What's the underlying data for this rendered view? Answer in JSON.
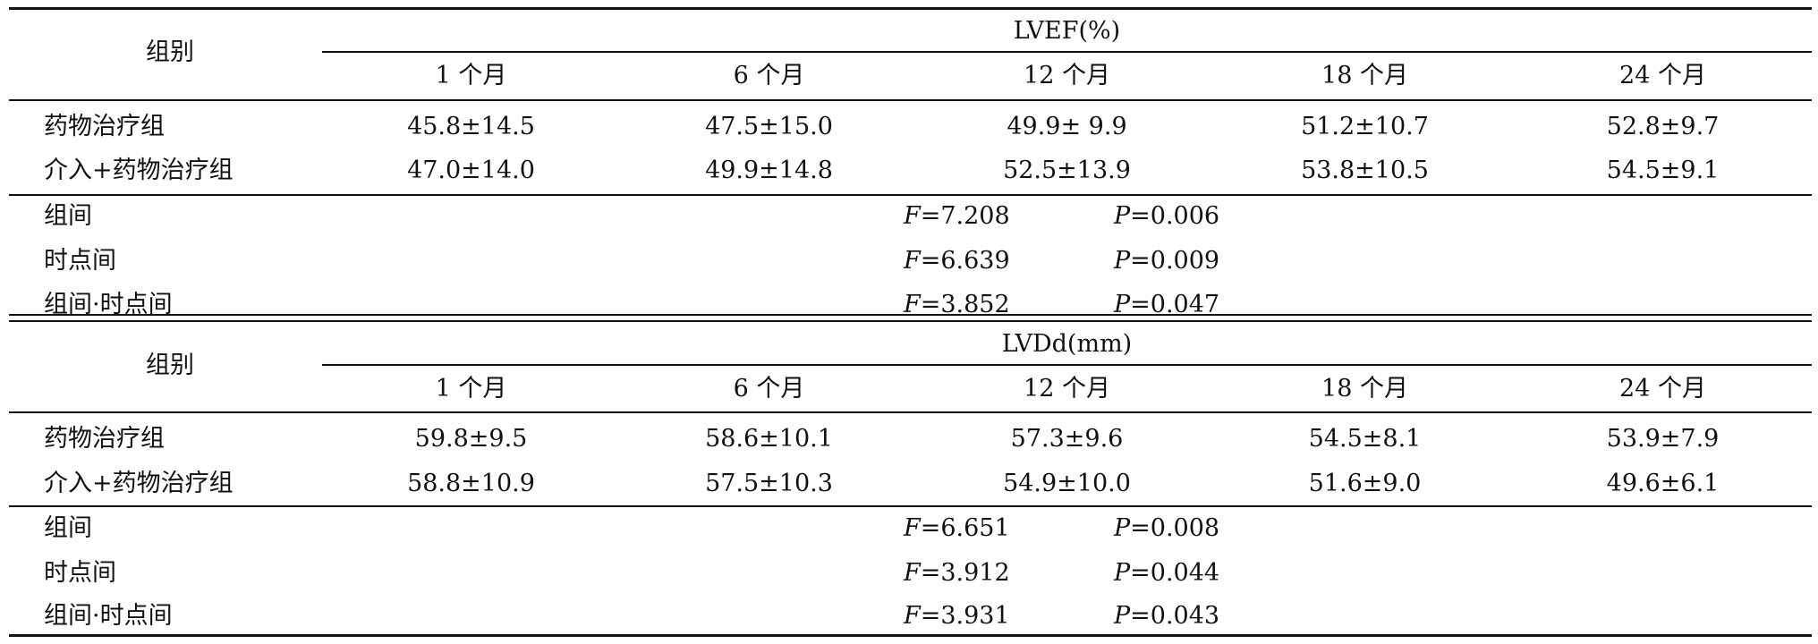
{
  "sections": [
    {
      "group_header": "组别",
      "measure_title": "LVEF(%)",
      "months": [
        "1 个月",
        "6 个月",
        "12 个月",
        "18 个月",
        "24 个月"
      ],
      "rows": [
        {
          "label": "药物治疗组",
          "values": [
            "45.8±14.5",
            "47.5±15.0",
            "49.9± 9.9",
            "51.2±10.7",
            "52.8±9.7"
          ]
        },
        {
          "label": "介入+药物治疗组",
          "values": [
            "47.0±14.0",
            "49.9±14.8",
            "52.5±13.9",
            "53.8±10.5",
            "54.5±9.1"
          ]
        }
      ],
      "stats": [
        {
          "label": "组间",
          "f_symbol": "F",
          "f_text": "=7.208",
          "p_symbol": "P",
          "p_text": "=0.006"
        },
        {
          "label": "时点间",
          "f_symbol": "F",
          "f_text": "=6.639",
          "p_symbol": "P",
          "p_text": "=0.009"
        },
        {
          "label": "组间·时点间",
          "f_symbol": "F",
          "f_text": "=3.852",
          "p_symbol": "P",
          "p_text": "=0.047"
        }
      ]
    },
    {
      "group_header": "组别",
      "measure_title": "LVDd(mm)",
      "months": [
        "1 个月",
        "6 个月",
        "12 个月",
        "18 个月",
        "24 个月"
      ],
      "rows": [
        {
          "label": "药物治疗组",
          "values": [
            "59.8±9.5",
            "58.6±10.1",
            "57.3±9.6",
            "54.5±8.1",
            "53.9±7.9"
          ]
        },
        {
          "label": "介入+药物治疗组",
          "values": [
            "58.8±10.9",
            "57.5±10.3",
            "54.9±10.0",
            "51.6±9.0",
            "49.6±6.1"
          ]
        }
      ],
      "stats": [
        {
          "label": "组间",
          "f_symbol": "F",
          "f_text": "=6.651",
          "p_symbol": "P",
          "p_text": "=0.008"
        },
        {
          "label": "时点间",
          "f_symbol": "F",
          "f_text": "=3.912",
          "p_symbol": "P",
          "p_text": "=0.044"
        },
        {
          "label": "组间·时点间",
          "f_symbol": "F",
          "f_text": "=3.931",
          "p_symbol": "P",
          "p_text": "=0.043"
        }
      ]
    }
  ]
}
